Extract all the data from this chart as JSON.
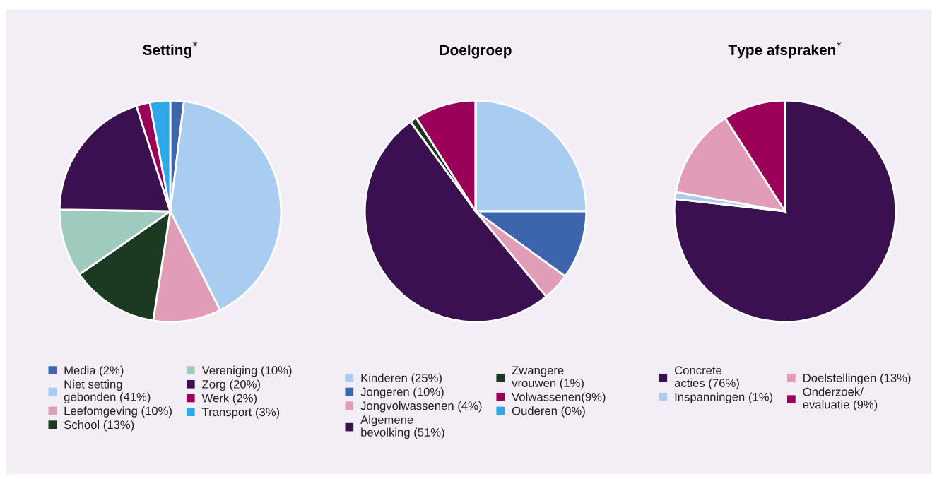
{
  "chart_data": [
    {
      "type": "pie",
      "title": "Setting$^{*}$",
      "legend": "bottom",
      "categories": [
        "Media (2%)",
        "Niet setting\ngebonden (41%)",
        "Leefomgeving (10%)",
        "School (13%)",
        "Vereniging (10%)",
        "Zorg (20%)",
        "Werk (2%)",
        "Transport (3%)"
      ],
      "values": [
        2,
        41,
        10,
        13,
        10,
        20,
        2,
        3
      ],
      "colors": [
        "#3d65ad",
        "#a8cdf0",
        "#e19cb8",
        "#1b3a22",
        "#9fcbbf",
        "#3b1050",
        "#9b0058",
        "#2ea8e8"
      ]
    },
    {
      "type": "pie",
      "title": "Doelgroep",
      "legend": "bottom",
      "categories": [
        "Kinderen (25%)",
        "Jongeren (10%)",
        "Jongvolwassenen (4%)",
        "Algemene\nbevolking (51%)",
        "Zwangere\nvrouwen (1%)",
        "Volwassenen(9%)",
        "Ouderen (0%)"
      ],
      "values": [
        25,
        10,
        4,
        51,
        1,
        9,
        0
      ],
      "colors": [
        "#a8cdf0",
        "#3d65ad",
        "#e19cb8",
        "#3b1050",
        "#1b3a22",
        "#9b0058",
        "#2ea8e8"
      ]
    },
    {
      "type": "pie",
      "title": "Type afspraken$^{*}$",
      "legend": "bottom",
      "categories": [
        "Concrete\nacties (76%)",
        "Inspanningen (1%)",
        "Doelstellingen (13%)",
        "Onderzoek/\nevaluatie (9%)"
      ],
      "values": [
        76,
        1,
        13,
        9
      ],
      "colors": [
        "#3b1050",
        "#a8cdf0",
        "#e19cb8",
        "#9b0058"
      ]
    }
  ]
}
